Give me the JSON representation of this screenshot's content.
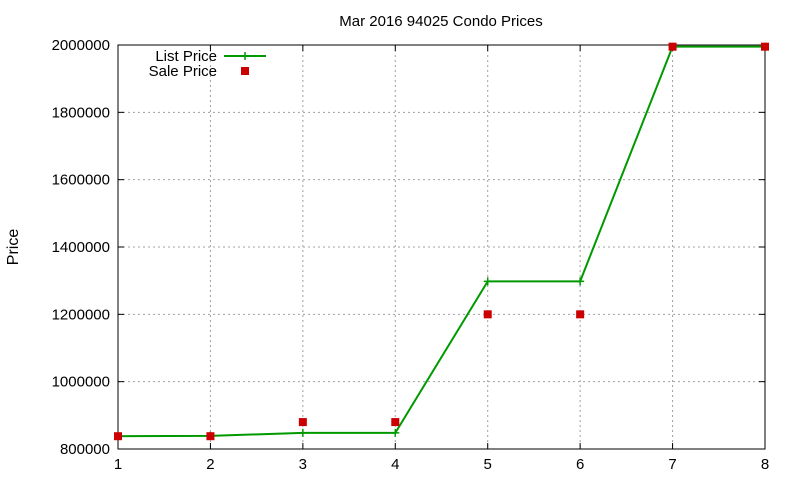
{
  "chart_data": {
    "type": "line",
    "title": "Mar 2016 94025 Condo Prices",
    "xlabel": "",
    "ylabel": "Price",
    "xlim": [
      1,
      8
    ],
    "ylim": [
      800000,
      2000000
    ],
    "xticks": [
      "1",
      "2",
      "3",
      "4",
      "5",
      "6",
      "7",
      "8"
    ],
    "yticks": [
      "800000",
      "1000000",
      "1200000",
      "1400000",
      "1600000",
      "1800000",
      "2000000"
    ],
    "grid": true,
    "legend_position": "top-left",
    "series": [
      {
        "name": "List Price",
        "style": "line-with-plus-markers",
        "color": "#009900",
        "x": [
          1,
          2,
          3,
          4,
          5,
          6,
          7,
          8
        ],
        "y": [
          838000,
          839000,
          848000,
          848000,
          1298000,
          1298000,
          1995000,
          1995000
        ]
      },
      {
        "name": "Sale Price",
        "style": "square-markers",
        "color": "#cc0000",
        "x": [
          1,
          2,
          3,
          4,
          5,
          6,
          7,
          8
        ],
        "y": [
          838000,
          838000,
          880000,
          880000,
          1200000,
          1200000,
          1995000,
          1995000
        ]
      }
    ]
  }
}
